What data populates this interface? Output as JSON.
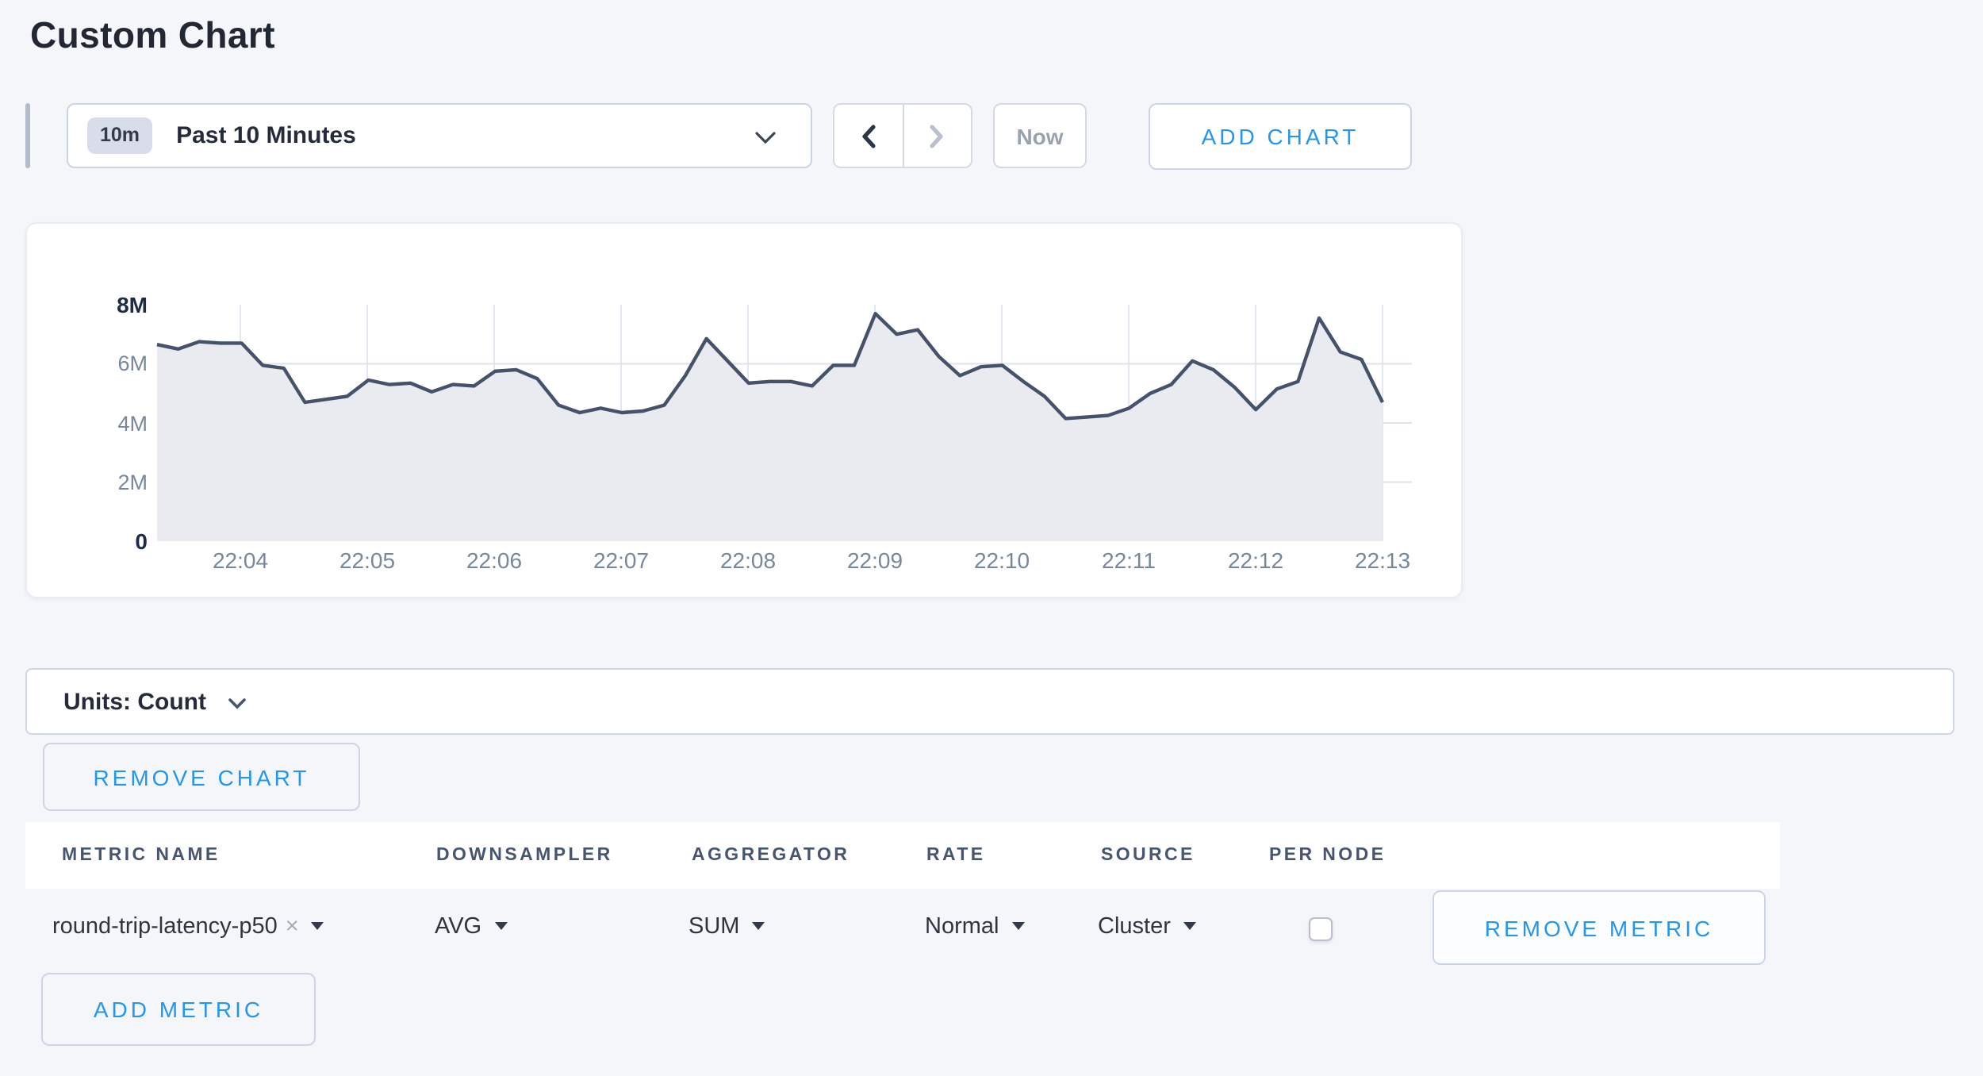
{
  "page_title": "Custom Chart",
  "toolbar": {
    "range_badge": "10m",
    "range_label": "Past 10 Minutes",
    "now_label": "Now",
    "add_chart_label": "ADD CHART"
  },
  "chart_data": {
    "type": "area",
    "title": "",
    "series_name": "round-trip-latency-p50 (SUM of AVG, Cluster)",
    "start_time": "22:03:20",
    "end_time": "22:13:00",
    "interval_seconds": 10,
    "x_ticks": [
      "22:04",
      "22:05",
      "22:06",
      "22:07",
      "22:08",
      "22:09",
      "22:10",
      "22:11",
      "22:12",
      "22:13"
    ],
    "y_ticks": [
      {
        "label": "0",
        "value": 0,
        "strong": true
      },
      {
        "label": "2M",
        "value": 2,
        "strong": false
      },
      {
        "label": "4M",
        "value": 4,
        "strong": false
      },
      {
        "label": "6M",
        "value": 6,
        "strong": false
      },
      {
        "label": "8M",
        "value": 8,
        "strong": true
      }
    ],
    "ylim_millions": [
      0,
      8
    ],
    "grid": true,
    "legend_position": "none",
    "values_millions": [
      6.65,
      6.5,
      6.75,
      6.7,
      6.7,
      5.95,
      5.85,
      4.7,
      4.8,
      4.9,
      5.45,
      5.3,
      5.35,
      5.05,
      5.3,
      5.25,
      5.75,
      5.8,
      5.5,
      4.6,
      4.35,
      4.5,
      4.35,
      4.4,
      4.6,
      5.6,
      6.85,
      6.1,
      5.35,
      5.4,
      5.4,
      5.25,
      5.95,
      5.95,
      7.7,
      7.0,
      7.15,
      6.25,
      5.6,
      5.9,
      5.95,
      5.4,
      4.9,
      4.15,
      4.2,
      4.25,
      4.5,
      5.0,
      5.3,
      6.1,
      5.8,
      5.2,
      4.45,
      5.15,
      5.4,
      7.55,
      6.4,
      6.15,
      4.7
    ],
    "line_color": "#46516a",
    "fill_color": "#e9ebf1",
    "grid_color_vertical": "#e3e7ef",
    "grid_color_horizontal": "#dde2ec"
  },
  "units_bar": {
    "label": "Units: Count"
  },
  "chart_actions": {
    "remove_chart_label": "REMOVE CHART"
  },
  "metrics_table": {
    "headers": [
      "METRIC NAME",
      "DOWNSAMPLER",
      "AGGREGATOR",
      "RATE",
      "SOURCE",
      "PER NODE"
    ],
    "rows": [
      {
        "metric_name": "round-trip-latency-p50",
        "remove_tag_symbol": "×",
        "downsampler": "AVG",
        "aggregator": "SUM",
        "rate": "Normal",
        "source": "Cluster",
        "per_node_checked": false,
        "remove_label": "REMOVE METRIC"
      }
    ],
    "add_metric_label": "ADD METRIC"
  },
  "colors": {
    "accent_blue": "#2196f3",
    "page_background": "#f4f6fa",
    "header_text": "#47566e"
  }
}
